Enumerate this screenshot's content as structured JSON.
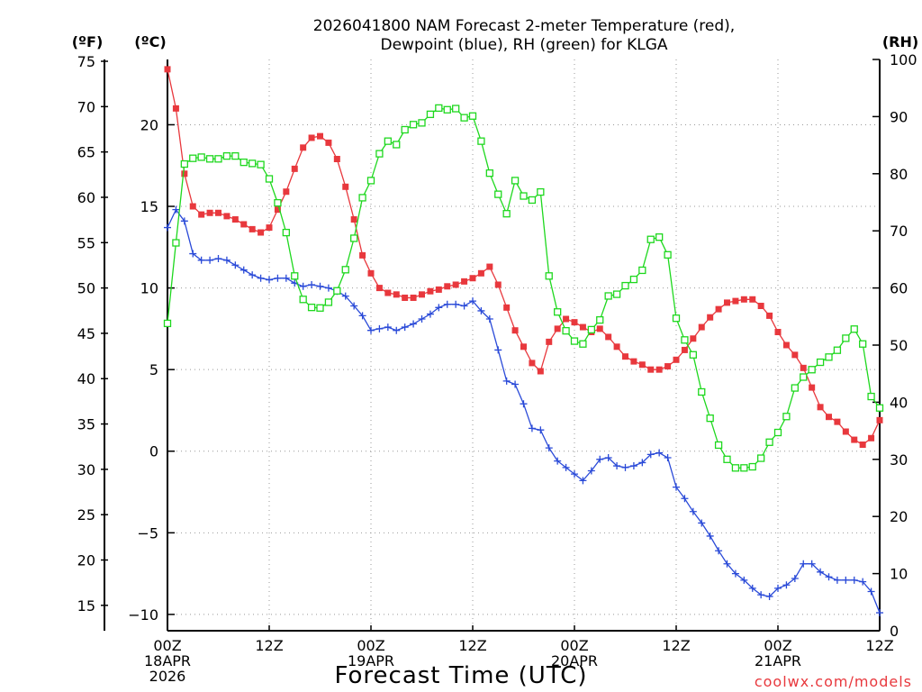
{
  "title_line1": "2026041800 NAM Forecast 2-meter Temperature (red),",
  "title_line2": "Dewpoint (blue), RH (green) for KLGA",
  "unit_f": "(ºF)",
  "unit_c": "(ºC)",
  "unit_rh": "(RH)",
  "xlabel": "Forecast Time (UTC)",
  "credit": "coolwx.com/models",
  "colors": {
    "temperature": "#e8383d",
    "dewpoint": "#2a4ad8",
    "rh": "#1ed81e",
    "grid": "#999999"
  },
  "chart_data": {
    "type": "line",
    "title": "2026041800 NAM Forecast 2-meter Temperature (red), Dewpoint (blue), RH (green) for KLGA",
    "xlabel": "Forecast Time (UTC)",
    "grid": true,
    "x_range_hours": [
      0,
      84
    ],
    "x_ticks": [
      {
        "h": 0,
        "lines": [
          "00Z",
          "18APR",
          "2026"
        ]
      },
      {
        "h": 12,
        "lines": [
          "12Z"
        ]
      },
      {
        "h": 24,
        "lines": [
          "00Z",
          "19APR"
        ]
      },
      {
        "h": 36,
        "lines": [
          "12Z"
        ]
      },
      {
        "h": 48,
        "lines": [
          "00Z",
          "20APR"
        ]
      },
      {
        "h": 60,
        "lines": [
          "12Z"
        ]
      },
      {
        "h": 72,
        "lines": [
          "00Z",
          "21APR"
        ]
      },
      {
        "h": 84,
        "lines": [
          "12Z"
        ]
      }
    ],
    "axes": {
      "celsius": {
        "label": "(ºC)",
        "range": [
          -11,
          24
        ],
        "ticks": [
          20,
          15,
          10,
          5,
          0,
          -5,
          -10
        ]
      },
      "fahrenheit": {
        "label": "(ºF)",
        "range": [
          12.2,
          75.2
        ],
        "ticks": [
          75,
          70,
          65,
          60,
          55,
          50,
          45,
          40,
          35,
          30,
          25,
          20,
          15
        ]
      },
      "rh": {
        "label": "(RH)",
        "range": [
          0,
          100
        ],
        "ticks": [
          100,
          90,
          80,
          70,
          60,
          50,
          40,
          30,
          20,
          10,
          0
        ]
      }
    },
    "series": [
      {
        "name": "Temperature",
        "color": "#e8383d",
        "marker": "filled-square",
        "axis": "celsius",
        "points": [
          [
            0,
            23.4
          ],
          [
            1,
            21.0
          ],
          [
            2,
            17.0
          ],
          [
            3,
            15.0
          ],
          [
            4,
            14.5
          ],
          [
            5,
            14.6
          ],
          [
            6,
            14.6
          ],
          [
            7,
            14.4
          ],
          [
            8,
            14.2
          ],
          [
            9,
            13.9
          ],
          [
            10,
            13.6
          ],
          [
            11,
            13.4
          ],
          [
            12,
            13.7
          ],
          [
            13,
            14.8
          ],
          [
            14,
            15.9
          ],
          [
            15,
            17.3
          ],
          [
            16,
            18.6
          ],
          [
            17,
            19.2
          ],
          [
            18,
            19.3
          ],
          [
            19,
            18.9
          ],
          [
            20,
            17.9
          ],
          [
            21,
            16.2
          ],
          [
            22,
            14.2
          ],
          [
            23,
            12.0
          ],
          [
            24,
            10.9
          ],
          [
            25,
            10.0
          ],
          [
            26,
            9.7
          ],
          [
            27,
            9.6
          ],
          [
            28,
            9.4
          ],
          [
            29,
            9.4
          ],
          [
            30,
            9.6
          ],
          [
            31,
            9.8
          ],
          [
            32,
            9.9
          ],
          [
            33,
            10.1
          ],
          [
            34,
            10.2
          ],
          [
            35,
            10.4
          ],
          [
            36,
            10.6
          ],
          [
            37,
            10.9
          ],
          [
            38,
            11.3
          ],
          [
            39,
            10.2
          ],
          [
            40,
            8.8
          ],
          [
            41,
            7.4
          ],
          [
            42,
            6.4
          ],
          [
            43,
            5.4
          ],
          [
            44,
            4.9
          ],
          [
            45,
            6.7
          ],
          [
            46,
            7.5
          ],
          [
            47,
            8.1
          ],
          [
            48,
            7.9
          ],
          [
            49,
            7.6
          ],
          [
            50,
            7.3
          ],
          [
            51,
            7.5
          ],
          [
            52,
            7.0
          ],
          [
            53,
            6.4
          ],
          [
            54,
            5.8
          ],
          [
            55,
            5.5
          ],
          [
            56,
            5.3
          ],
          [
            57,
            5.0
          ],
          [
            58,
            5.0
          ],
          [
            59,
            5.2
          ],
          [
            60,
            5.6
          ],
          [
            61,
            6.2
          ],
          [
            62,
            6.9
          ],
          [
            63,
            7.6
          ],
          [
            64,
            8.2
          ],
          [
            65,
            8.7
          ],
          [
            66,
            9.1
          ],
          [
            67,
            9.2
          ],
          [
            68,
            9.3
          ],
          [
            69,
            9.3
          ],
          [
            70,
            8.9
          ],
          [
            71,
            8.3
          ],
          [
            72,
            7.3
          ],
          [
            73,
            6.5
          ],
          [
            74,
            5.9
          ],
          [
            75,
            5.1
          ],
          [
            76,
            3.9
          ],
          [
            77,
            2.7
          ],
          [
            78,
            2.1
          ],
          [
            79,
            1.8
          ],
          [
            80,
            1.2
          ],
          [
            81,
            0.7
          ],
          [
            82,
            0.4
          ],
          [
            83,
            0.8
          ],
          [
            84,
            1.9
          ]
        ]
      },
      {
        "name": "Dewpoint",
        "color": "#2a4ad8",
        "marker": "plus",
        "axis": "celsius",
        "points": [
          [
            0,
            13.7
          ],
          [
            1,
            14.8
          ],
          [
            2,
            14.1
          ],
          [
            3,
            12.1
          ],
          [
            4,
            11.7
          ],
          [
            5,
            11.7
          ],
          [
            6,
            11.8
          ],
          [
            7,
            11.7
          ],
          [
            8,
            11.4
          ],
          [
            9,
            11.1
          ],
          [
            10,
            10.8
          ],
          [
            11,
            10.6
          ],
          [
            12,
            10.5
          ],
          [
            13,
            10.6
          ],
          [
            14,
            10.6
          ],
          [
            15,
            10.3
          ],
          [
            16,
            10.1
          ],
          [
            17,
            10.2
          ],
          [
            18,
            10.1
          ],
          [
            19,
            10.0
          ],
          [
            20,
            9.8
          ],
          [
            21,
            9.5
          ],
          [
            22,
            8.9
          ],
          [
            23,
            8.3
          ],
          [
            24,
            7.4
          ],
          [
            25,
            7.5
          ],
          [
            26,
            7.6
          ],
          [
            27,
            7.4
          ],
          [
            28,
            7.6
          ],
          [
            29,
            7.8
          ],
          [
            30,
            8.1
          ],
          [
            31,
            8.4
          ],
          [
            32,
            8.8
          ],
          [
            33,
            9.0
          ],
          [
            34,
            9.0
          ],
          [
            35,
            8.9
          ],
          [
            36,
            9.2
          ],
          [
            37,
            8.6
          ],
          [
            38,
            8.1
          ],
          [
            39,
            6.2
          ],
          [
            40,
            4.3
          ],
          [
            41,
            4.1
          ],
          [
            42,
            2.9
          ],
          [
            43,
            1.4
          ],
          [
            44,
            1.3
          ],
          [
            45,
            0.2
          ],
          [
            46,
            -0.6
          ],
          [
            47,
            -1.0
          ],
          [
            48,
            -1.4
          ],
          [
            49,
            -1.8
          ],
          [
            50,
            -1.2
          ],
          [
            51,
            -0.5
          ],
          [
            52,
            -0.4
          ],
          [
            53,
            -0.9
          ],
          [
            54,
            -1.0
          ],
          [
            55,
            -0.9
          ],
          [
            56,
            -0.7
          ],
          [
            57,
            -0.2
          ],
          [
            58,
            -0.1
          ],
          [
            59,
            -0.4
          ],
          [
            60,
            -2.2
          ],
          [
            61,
            -2.9
          ],
          [
            62,
            -3.7
          ],
          [
            63,
            -4.4
          ],
          [
            64,
            -5.2
          ],
          [
            65,
            -6.1
          ],
          [
            66,
            -6.9
          ],
          [
            67,
            -7.5
          ],
          [
            68,
            -7.9
          ],
          [
            69,
            -8.4
          ],
          [
            70,
            -8.8
          ],
          [
            71,
            -8.9
          ],
          [
            72,
            -8.4
          ],
          [
            73,
            -8.2
          ],
          [
            74,
            -7.8
          ],
          [
            75,
            -6.9
          ],
          [
            76,
            -6.9
          ],
          [
            77,
            -7.4
          ],
          [
            78,
            -7.7
          ],
          [
            79,
            -7.9
          ],
          [
            80,
            -7.9
          ],
          [
            81,
            -7.9
          ],
          [
            82,
            -8.0
          ],
          [
            83,
            -8.6
          ],
          [
            84,
            -9.9
          ]
        ]
      },
      {
        "name": "RH",
        "color": "#1ed81e",
        "marker": "open-square",
        "axis": "rh",
        "points": [
          [
            0,
            53.8
          ],
          [
            1,
            67.9
          ],
          [
            2,
            81.7
          ],
          [
            3,
            82.7
          ],
          [
            4,
            82.9
          ],
          [
            5,
            82.6
          ],
          [
            6,
            82.6
          ],
          [
            7,
            83.1
          ],
          [
            8,
            83.1
          ],
          [
            9,
            82.0
          ],
          [
            10,
            81.8
          ],
          [
            11,
            81.6
          ],
          [
            12,
            79.1
          ],
          [
            13,
            74.9
          ],
          [
            14,
            69.7
          ],
          [
            15,
            62.1
          ],
          [
            16,
            58.0
          ],
          [
            17,
            56.6
          ],
          [
            18,
            56.5
          ],
          [
            19,
            57.5
          ],
          [
            20,
            59.5
          ],
          [
            21,
            63.2
          ],
          [
            22,
            68.7
          ],
          [
            23,
            75.8
          ],
          [
            24,
            78.8
          ],
          [
            25,
            83.5
          ],
          [
            26,
            85.7
          ],
          [
            27,
            85.1
          ],
          [
            28,
            87.7
          ],
          [
            29,
            88.6
          ],
          [
            30,
            88.9
          ],
          [
            31,
            90.4
          ],
          [
            32,
            91.5
          ],
          [
            33,
            91.2
          ],
          [
            34,
            91.4
          ],
          [
            35,
            89.8
          ],
          [
            36,
            90.1
          ],
          [
            37,
            85.7
          ],
          [
            38,
            80.1
          ],
          [
            39,
            76.4
          ],
          [
            40,
            73.0
          ],
          [
            41,
            78.8
          ],
          [
            42,
            76.1
          ],
          [
            43,
            75.4
          ],
          [
            44,
            76.8
          ],
          [
            45,
            62.1
          ],
          [
            46,
            55.8
          ],
          [
            47,
            52.5
          ],
          [
            48,
            50.7
          ],
          [
            49,
            50.2
          ],
          [
            50,
            52.7
          ],
          [
            51,
            54.4
          ],
          [
            52,
            58.6
          ],
          [
            53,
            58.9
          ],
          [
            54,
            60.4
          ],
          [
            55,
            61.5
          ],
          [
            56,
            63.1
          ],
          [
            57,
            68.5
          ],
          [
            58,
            68.9
          ],
          [
            59,
            65.8
          ],
          [
            60,
            54.7
          ],
          [
            61,
            50.9
          ],
          [
            62,
            48.3
          ],
          [
            63,
            41.8
          ],
          [
            64,
            37.2
          ],
          [
            65,
            32.5
          ],
          [
            66,
            30.0
          ],
          [
            67,
            28.5
          ],
          [
            68,
            28.5
          ],
          [
            69,
            28.7
          ],
          [
            70,
            30.2
          ],
          [
            71,
            33.0
          ],
          [
            72,
            34.7
          ],
          [
            73,
            37.5
          ],
          [
            74,
            42.5
          ],
          [
            75,
            44.4
          ],
          [
            76,
            45.7
          ],
          [
            77,
            47.0
          ],
          [
            78,
            47.9
          ],
          [
            79,
            49.1
          ],
          [
            80,
            51.2
          ],
          [
            81,
            52.8
          ],
          [
            82,
            50.2
          ],
          [
            83,
            41.0
          ],
          [
            84,
            39.0
          ]
        ]
      }
    ]
  }
}
